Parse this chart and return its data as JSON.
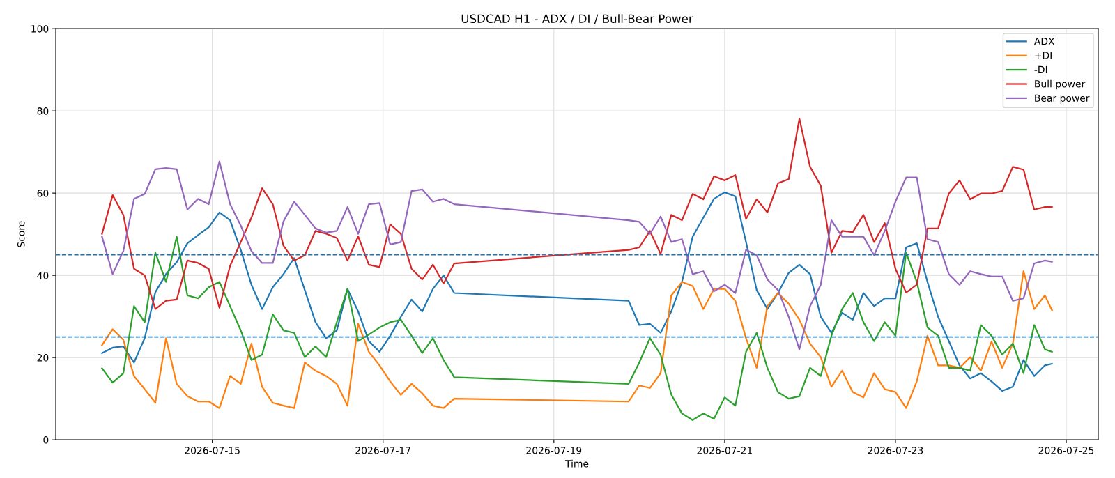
{
  "chart_data": {
    "type": "line",
    "title": "USDCAD H1 - ADX / DI / Bull-Bear Power",
    "xlabel": "Time",
    "ylabel": "Score",
    "x": [
      "2026-07-13T17:00",
      "2026-07-13T20:00",
      "2026-07-13T23:00",
      "2026-07-14T02:00",
      "2026-07-14T05:00",
      "2026-07-14T08:00",
      "2026-07-14T11:00",
      "2026-07-14T14:00",
      "2026-07-14T17:00",
      "2026-07-14T20:00",
      "2026-07-14T23:00",
      "2026-07-15T02:00",
      "2026-07-15T05:00",
      "2026-07-15T08:00",
      "2026-07-15T11:00",
      "2026-07-15T14:00",
      "2026-07-15T17:00",
      "2026-07-15T20:00",
      "2026-07-15T23:00",
      "2026-07-16T02:00",
      "2026-07-16T05:00",
      "2026-07-16T08:00",
      "2026-07-16T11:00",
      "2026-07-16T14:00",
      "2026-07-16T17:00",
      "2026-07-16T20:00",
      "2026-07-16T23:00",
      "2026-07-17T02:00",
      "2026-07-17T05:00",
      "2026-07-17T08:00",
      "2026-07-17T11:00",
      "2026-07-17T14:00",
      "2026-07-17T17:00",
      "2026-07-17T20:00",
      "2026-07-19T21:00",
      "2026-07-20T00:00",
      "2026-07-20T03:00",
      "2026-07-20T06:00",
      "2026-07-20T09:00",
      "2026-07-20T12:00",
      "2026-07-20T15:00",
      "2026-07-20T18:00",
      "2026-07-20T21:00",
      "2026-07-21T00:00",
      "2026-07-21T03:00",
      "2026-07-21T06:00",
      "2026-07-21T09:00",
      "2026-07-21T12:00",
      "2026-07-21T15:00",
      "2026-07-21T18:00",
      "2026-07-21T21:00",
      "2026-07-22T00:00",
      "2026-07-22T03:00",
      "2026-07-22T06:00",
      "2026-07-22T09:00",
      "2026-07-22T12:00",
      "2026-07-22T15:00",
      "2026-07-22T18:00",
      "2026-07-22T21:00",
      "2026-07-23T00:00",
      "2026-07-23T03:00",
      "2026-07-23T06:00",
      "2026-07-23T09:00",
      "2026-07-23T12:00",
      "2026-07-23T15:00",
      "2026-07-23T18:00",
      "2026-07-23T21:00",
      "2026-07-24T00:00",
      "2026-07-24T03:00",
      "2026-07-24T06:00",
      "2026-07-24T09:00",
      "2026-07-24T12:00",
      "2026-07-24T15:00",
      "2026-07-24T18:00",
      "2026-07-24T20:00"
    ],
    "series": [
      {
        "name": "ADX",
        "color": "#1f77b4",
        "values": [
          21.1,
          22.4,
          22.7,
          18.8,
          24.7,
          35.9,
          40.3,
          43.2,
          47.8,
          49.8,
          51.7,
          55.3,
          53.4,
          46.2,
          37.7,
          31.8,
          37.1,
          40.3,
          44.2,
          36.4,
          28.6,
          24.7,
          26.6,
          36.7,
          31.2,
          24.0,
          21.4,
          25.3,
          29.9,
          34.1,
          31.2,
          36.7,
          40.0,
          35.7,
          33.8,
          27.9,
          28.2,
          26.0,
          31.2,
          38.4,
          49.4,
          54.0,
          58.6,
          60.2,
          59.2,
          48.1,
          36.4,
          31.8,
          35.7,
          40.6,
          42.6,
          40.3,
          29.9,
          26.0,
          30.9,
          29.2,
          35.7,
          32.5,
          34.4,
          34.4,
          46.8,
          47.8,
          38.4,
          29.9,
          24.0,
          18.1,
          14.9,
          16.2,
          14.2,
          11.9,
          12.9,
          19.4,
          15.5,
          18.1,
          18.5
        ]
      },
      {
        "name": "+DI",
        "color": "#ff7f0e",
        "values": [
          23.0,
          26.9,
          24.3,
          15.5,
          12.3,
          9.0,
          24.7,
          13.6,
          10.6,
          9.3,
          9.3,
          7.7,
          15.5,
          13.6,
          23.4,
          12.9,
          9.0,
          8.3,
          7.7,
          18.8,
          16.8,
          15.5,
          13.6,
          8.3,
          28.2,
          21.4,
          18.1,
          14.2,
          10.9,
          13.6,
          11.3,
          8.3,
          7.7,
          10.0,
          9.3,
          13.2,
          12.6,
          16.2,
          35.1,
          38.4,
          37.4,
          31.8,
          36.7,
          36.7,
          33.8,
          24.7,
          17.5,
          32.5,
          35.7,
          33.1,
          29.2,
          23.4,
          20.1,
          12.9,
          16.8,
          11.6,
          10.3,
          16.2,
          12.3,
          11.6,
          7.7,
          14.2,
          25.3,
          18.1,
          18.1,
          17.5,
          20.1,
          16.8,
          23.9,
          17.5,
          23.4,
          41.0,
          31.8,
          35.1,
          31.5
        ]
      },
      {
        "name": "-DI",
        "color": "#2ca02c",
        "values": [
          17.4,
          13.9,
          16.2,
          32.5,
          28.6,
          45.5,
          38.4,
          49.4,
          35.1,
          34.4,
          37.1,
          38.4,
          32.5,
          26.6,
          19.4,
          20.7,
          30.5,
          26.6,
          26.0,
          20.1,
          22.7,
          20.1,
          28.6,
          36.7,
          24.0,
          25.6,
          27.3,
          28.6,
          29.2,
          25.3,
          21.1,
          24.7,
          19.4,
          15.2,
          13.6,
          18.8,
          24.7,
          20.7,
          11.0,
          6.4,
          4.8,
          6.4,
          5.1,
          10.3,
          8.3,
          21.4,
          26.0,
          17.5,
          11.6,
          10.0,
          10.6,
          17.5,
          15.5,
          25.3,
          31.8,
          35.7,
          28.6,
          24.0,
          28.6,
          25.3,
          45.5,
          38.4,
          27.3,
          25.3,
          17.5,
          17.5,
          16.8,
          27.9,
          25.3,
          20.7,
          23.4,
          16.2,
          27.9,
          22.0,
          21.4
        ]
      },
      {
        "name": "Bull power",
        "color": "#d62728",
        "values": [
          50.1,
          59.5,
          54.7,
          41.6,
          40.0,
          31.8,
          33.8,
          34.1,
          43.6,
          43.0,
          41.6,
          32.1,
          42.3,
          48.1,
          54.0,
          61.2,
          57.3,
          47.2,
          43.6,
          44.9,
          50.8,
          50.1,
          49.1,
          43.6,
          49.5,
          42.6,
          42.0,
          52.4,
          50.1,
          41.6,
          39.0,
          42.6,
          38.0,
          42.9,
          46.2,
          46.8,
          50.8,
          45.2,
          54.7,
          53.4,
          59.8,
          58.5,
          64.1,
          63.1,
          64.4,
          53.7,
          58.5,
          55.3,
          62.4,
          63.4,
          78.1,
          66.4,
          61.8,
          45.5,
          50.8,
          50.5,
          54.7,
          48.1,
          52.7,
          41.6,
          35.8,
          37.7,
          51.4,
          51.4,
          59.9,
          63.1,
          58.5,
          59.9,
          59.9,
          60.5,
          66.4,
          65.7,
          56.0,
          56.6,
          56.6
        ]
      },
      {
        "name": "Bear power",
        "color": "#9467bd",
        "values": [
          49.4,
          40.3,
          45.9,
          58.6,
          59.8,
          65.8,
          66.1,
          65.8,
          56.0,
          58.6,
          57.3,
          67.7,
          57.3,
          52.1,
          45.9,
          43.0,
          43.0,
          53.1,
          57.9,
          54.7,
          51.4,
          50.4,
          50.8,
          56.6,
          50.1,
          57.3,
          57.6,
          47.5,
          48.1,
          60.5,
          60.9,
          57.9,
          58.6,
          57.3,
          53.4,
          53.0,
          50.1,
          54.3,
          48.1,
          48.8,
          40.3,
          41.0,
          36.1,
          37.7,
          35.7,
          46.2,
          44.9,
          39.0,
          36.4,
          29.9,
          22.0,
          32.5,
          37.7,
          53.4,
          49.4,
          49.4,
          49.4,
          44.9,
          50.8,
          57.9,
          63.8,
          63.8,
          48.8,
          48.1,
          40.3,
          37.7,
          41.0,
          40.3,
          39.7,
          39.7,
          33.8,
          34.4,
          42.9,
          43.6,
          43.3
        ]
      }
    ],
    "ref_lines": [
      {
        "axis": "y",
        "value": 45,
        "color": "#1f77b4",
        "line_style": "dashed"
      },
      {
        "axis": "y",
        "value": 25,
        "color": "#1f77b4",
        "line_style": "dashed"
      }
    ],
    "xlim": [
      "2026-07-13T04:00",
      "2026-07-25T09:00"
    ],
    "xticks": [
      "2026-07-15",
      "2026-07-17",
      "2026-07-19",
      "2026-07-21",
      "2026-07-23",
      "2026-07-25"
    ],
    "ylim": [
      0,
      100
    ],
    "yticks": [
      0,
      20,
      40,
      60,
      80,
      100
    ],
    "grid": true,
    "legend": "top right",
    "marker": "none",
    "line_style": "solid"
  }
}
